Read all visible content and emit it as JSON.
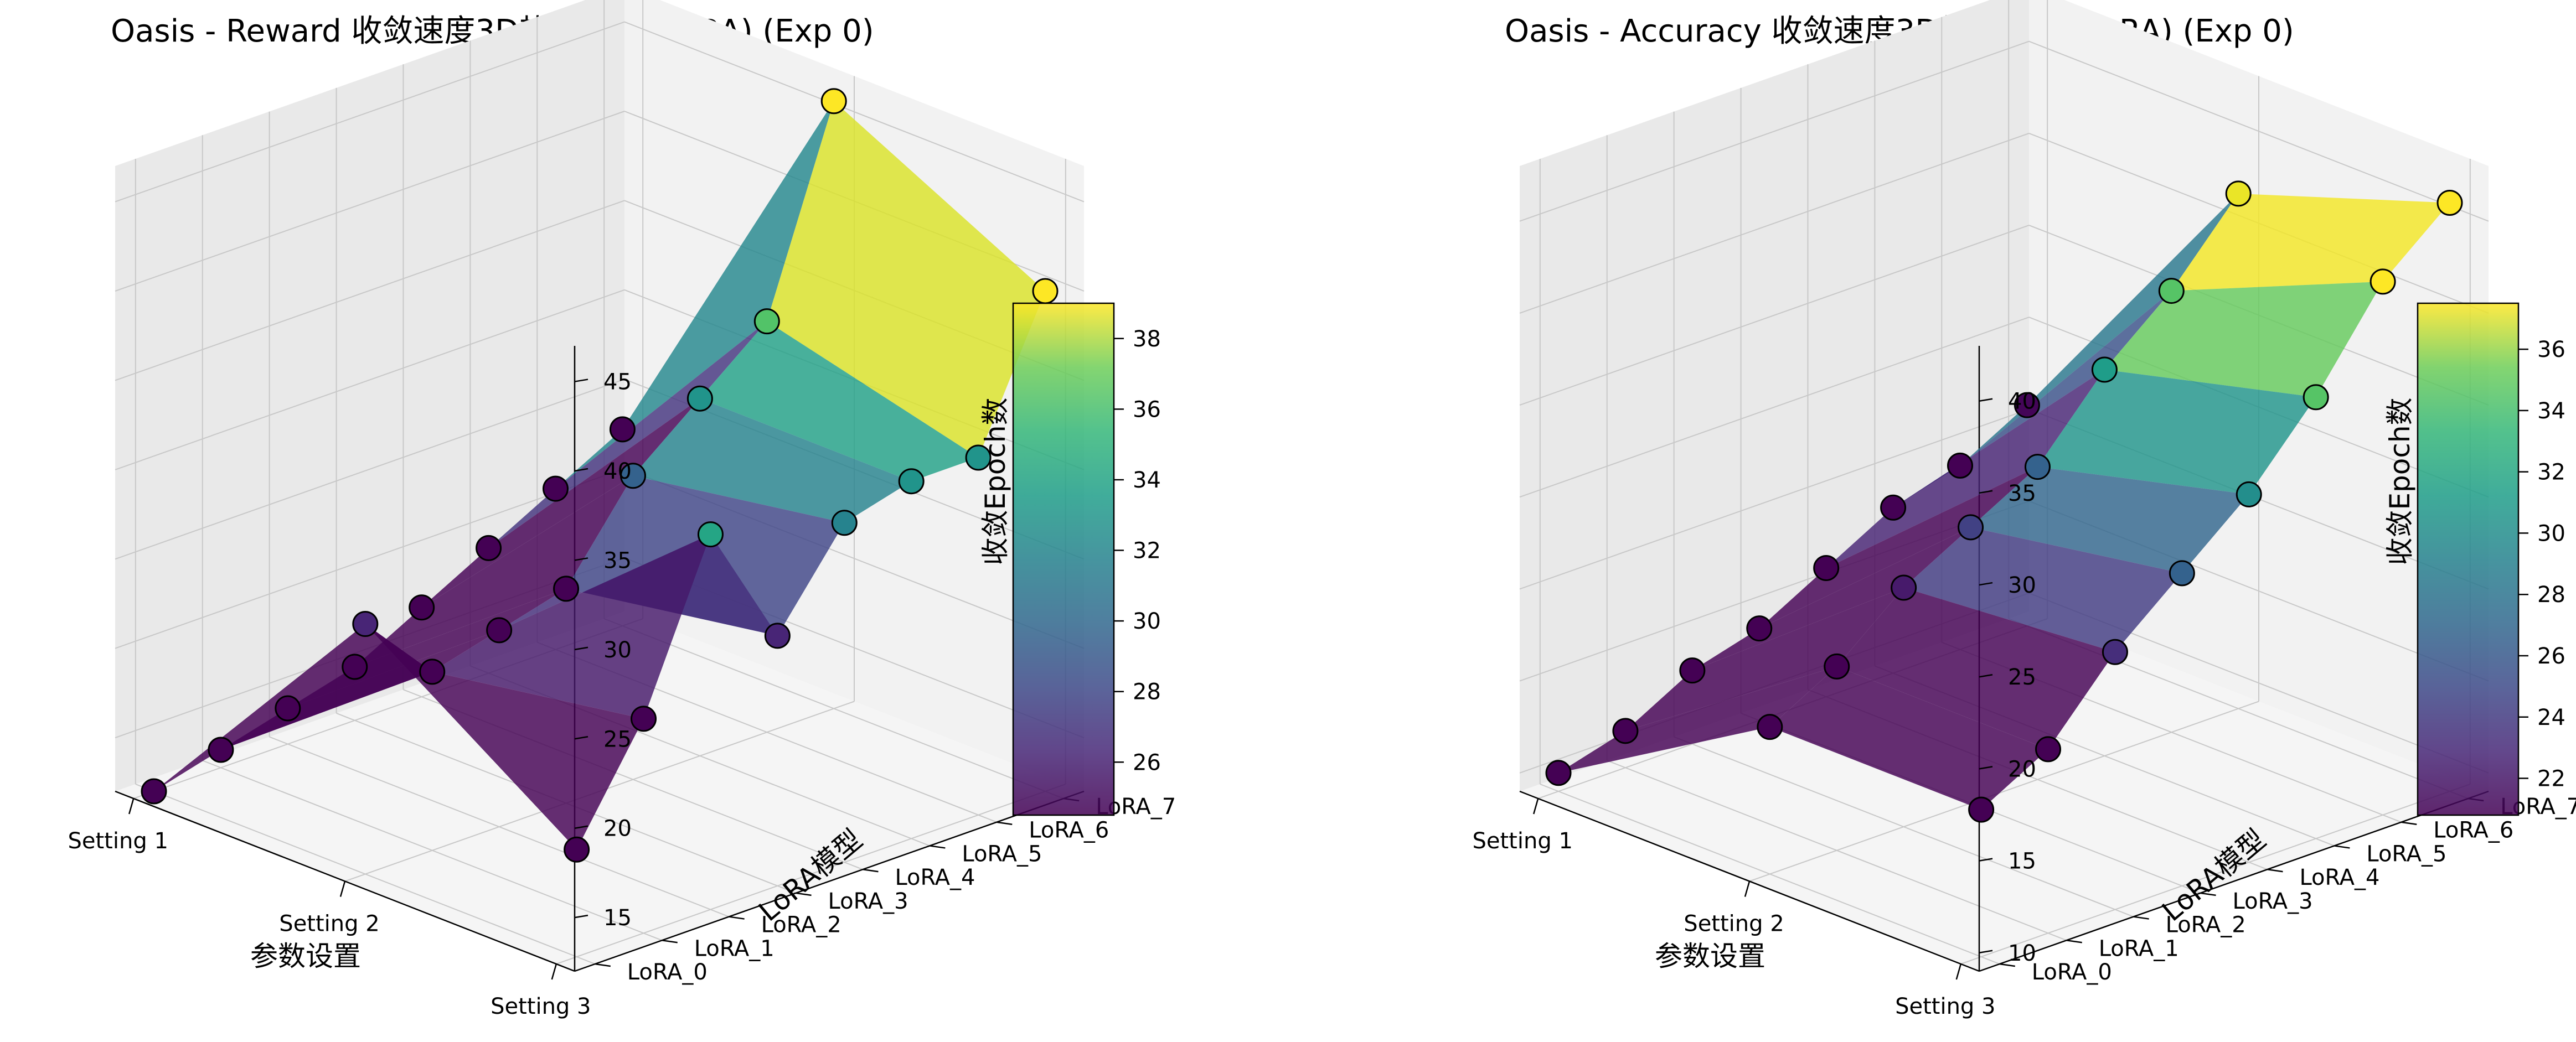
{
  "figure": {
    "background": "#ffffff",
    "pane_colors": {
      "back": "#f2f2f2",
      "left": "#e9e9e9",
      "floor": "#f5f5f5",
      "grid": "#c8c8c8",
      "edge": "#000000"
    }
  },
  "chart_data": [
    {
      "type": "surface3d",
      "title": "Oasis - Reward 收敛速度3D热力图 (8 LoRA) (Exp 0)",
      "xlabel": "参数设置",
      "ylabel": "LoRA模型",
      "zlabel": "收敛Epoch数",
      "x_categories": [
        "Setting 1",
        "Setting 2",
        "Setting 3"
      ],
      "y_categories": [
        "LoRA_0",
        "LoRA_1",
        "LoRA_2",
        "LoRA_3",
        "LoRA_4",
        "LoRA_5",
        "LoRA_6",
        "LoRA_7"
      ],
      "z_ticks": [
        15,
        20,
        25,
        30,
        35,
        40,
        45
      ],
      "zlim": [
        12,
        47
      ],
      "colormap": "viridis",
      "colorbar_range": [
        24.5,
        39
      ],
      "colorbar_ticks": [
        26,
        28,
        30,
        32,
        34,
        36,
        38
      ],
      "z": [
        [
          12,
          13,
          14,
          15,
          17,
          19,
          21,
          23
        ],
        [
          26,
          22,
          23,
          24,
          29,
          32,
          35,
          46
        ],
        [
          18,
          24,
          33,
          26,
          31,
          32,
          32,
          40
        ]
      ]
    },
    {
      "type": "surface3d",
      "title": "Oasis - Accuracy 收敛速度3D热力图 (8 LoRA) (Exp 0)",
      "xlabel": "参数设置",
      "ylabel": "LoRA模型",
      "zlabel": "收敛Epoch数",
      "x_categories": [
        "Setting 1",
        "Setting 2",
        "Setting 3"
      ],
      "y_categories": [
        "LoRA_0",
        "LoRA_1",
        "LoRA_2",
        "LoRA_3",
        "LoRA_4",
        "LoRA_5",
        "LoRA_6",
        "LoRA_7"
      ],
      "z_ticks": [
        10,
        15,
        20,
        25,
        30,
        35,
        40
      ],
      "zlim": [
        9,
        43
      ],
      "colormap": "viridis",
      "colorbar_range": [
        20.8,
        37.5
      ],
      "colorbar_ticks": [
        22,
        24,
        26,
        28,
        30,
        32,
        34,
        36
      ],
      "z": [
        [
          10,
          11,
          13,
          14,
          16,
          18,
          19,
          21
        ],
        [
          17,
          19,
          22,
          24,
          26,
          30,
          33,
          37
        ],
        [
          17,
          19,
          23,
          26,
          29,
          33,
          38,
          41
        ]
      ]
    }
  ]
}
